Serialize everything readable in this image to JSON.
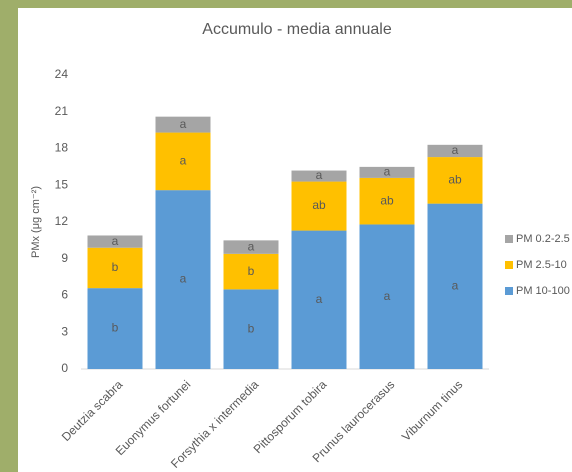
{
  "chart_data": {
    "type": "stacked_bar",
    "title": "Accumulo - media annuale",
    "y_label": "PMx (μg cm⁻²)",
    "categories": [
      "Deutzia scabra",
      "Euonymus fortunei",
      "Forsythia x intermedia",
      "Pittosporum tobira",
      "Prunus laurocerasus",
      "Viburnum tinus"
    ],
    "series": [
      {
        "name": "PM 10-100",
        "color": "#5b9bd5",
        "values": [
          6.6,
          14.6,
          6.5,
          11.3,
          11.8,
          13.5
        ],
        "letters": [
          "b",
          "a",
          "b",
          "a",
          "a",
          "a"
        ]
      },
      {
        "name": "PM 2.5-10",
        "color": "#ffc000",
        "values": [
          3.3,
          4.7,
          2.9,
          4.0,
          3.8,
          3.8
        ],
        "letters": [
          "b",
          "a",
          "b",
          "ab",
          "ab",
          "ab"
        ]
      },
      {
        "name": "PM 0.2-2.5",
        "color": "#a5a5a5",
        "values": [
          1.0,
          1.3,
          1.1,
          0.9,
          0.9,
          1.0
        ],
        "letters": [
          "a",
          "a",
          "a",
          "a",
          "a",
          "a"
        ]
      }
    ],
    "ylim": [
      0,
      24
    ],
    "yticks": [
      0,
      3,
      6,
      9,
      12,
      15,
      18,
      21,
      24
    ],
    "legend": "right"
  }
}
